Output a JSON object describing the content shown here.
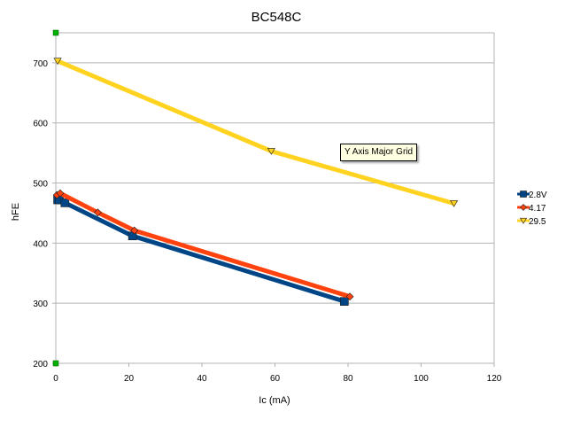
{
  "chart_data": {
    "type": "line",
    "title": "BC548C",
    "xlabel": "Ic (mA)",
    "ylabel": "hFE",
    "xlim": [
      0,
      120
    ],
    "ylim": [
      200,
      750
    ],
    "x_ticks": [
      "0",
      "20",
      "40",
      "60",
      "80",
      "100",
      "120"
    ],
    "y_ticks": [
      "200",
      "300",
      "400",
      "500",
      "600",
      "700"
    ],
    "grid": "horizontal major lines only",
    "legend": "right",
    "tooltip": "Y Axis Major Grid",
    "series": [
      {
        "name": "2.8V",
        "color": "#004586",
        "marker": "square",
        "points": [
          [
            0.5,
            472
          ],
          [
            1.0,
            472
          ],
          [
            2.5,
            467
          ],
          [
            21,
            412
          ],
          [
            79,
            303
          ]
        ]
      },
      {
        "name": "4.17",
        "color": "#ff420e",
        "marker": "diamond",
        "points": [
          [
            0.3,
            480
          ],
          [
            1.2,
            483
          ],
          [
            11.5,
            451
          ],
          [
            21.5,
            421
          ],
          [
            80.5,
            311
          ]
        ]
      },
      {
        "name": "29.5",
        "color": "#ffd320",
        "marker": "triangle-down",
        "points": [
          [
            0.5,
            703
          ],
          [
            59,
            553
          ],
          [
            109,
            466
          ]
        ]
      }
    ],
    "marker_series": {
      "color": "#00b000",
      "marker": "square",
      "points": [
        [
          0,
          750
        ],
        [
          0,
          200
        ]
      ]
    }
  }
}
